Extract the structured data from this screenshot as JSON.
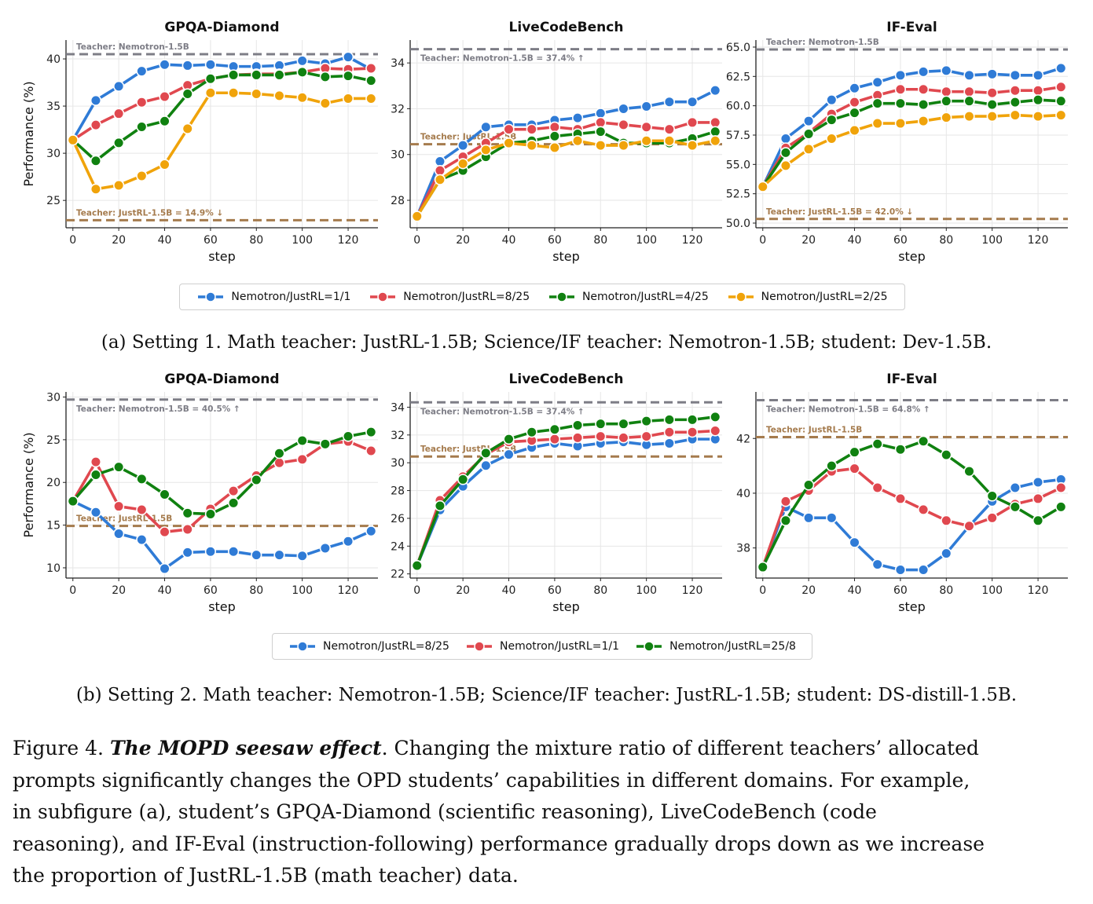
{
  "colors": {
    "blue": "#2f7bd6",
    "red": "#e0484f",
    "green": "#108110",
    "orange": "#f0a30a",
    "teacher_nemotron": "#7d7d86",
    "teacher_justrl": "#a57b4d"
  },
  "row_a": {
    "legend": [
      "Nemotron/JustRL=1/1",
      "Nemotron/JustRL=8/25",
      "Nemotron/JustRL=4/25",
      "Nemotron/JustRL=2/25"
    ],
    "subcaption": "(a) Setting 1. Math teacher: JustRL-1.5B; Science/IF teacher: Nemotron-1.5B; student: Dev-1.5B."
  },
  "row_b": {
    "legend": [
      "Nemotron/JustRL=8/25",
      "Nemotron/JustRL=1/1",
      "Nemotron/JustRL=25/8"
    ],
    "subcaption": "(b) Setting 2. Math teacher: Nemotron-1.5B; Science/IF teacher: JustRL-1.5B; student: DS-distill-1.5B."
  },
  "caption": {
    "lead": "Figure 4. ",
    "emph": "The MOPD seesaw effect",
    "lines": [
      ". Changing the mixture ratio of different teachers’ allocated",
      "prompts significantly changes the OPD students’ capabilities in different domains. For example,",
      "in subfigure (a), student’s GPQA-Diamond (scientific reasoning), LiveCodeBench (code",
      "reasoning), and IF-Eval (instruction-following) performance gradually drops down as we increase",
      "the proportion of JustRL-1.5B (math teacher) data."
    ]
  },
  "chart_data": [
    {
      "type": "line",
      "title": "GPQA-Diamond",
      "xlabel": "step",
      "ylabel": "Performance (%)",
      "xlim": [
        -3,
        133
      ],
      "ylim": [
        22.1,
        42.0
      ],
      "yticks": [
        25,
        30,
        35,
        40
      ],
      "xticks": [
        0,
        20,
        40,
        60,
        80,
        100,
        120
      ],
      "ytick_decimals": 0,
      "grid": true,
      "x": [
        0,
        10,
        20,
        30,
        40,
        50,
        60,
        70,
        80,
        90,
        100,
        110,
        120,
        130
      ],
      "series": [
        {
          "name": "Nemotron/JustRL=1/1",
          "color": "blue",
          "values": [
            31.4,
            35.6,
            37.1,
            38.7,
            39.4,
            39.3,
            39.4,
            39.2,
            39.2,
            39.3,
            39.8,
            39.5,
            40.2,
            38.9
          ]
        },
        {
          "name": "Nemotron/JustRL=8/25",
          "color": "red",
          "values": [
            31.4,
            33.0,
            34.2,
            35.4,
            36.0,
            37.2,
            37.9,
            38.3,
            38.4,
            38.4,
            38.6,
            39.0,
            38.9,
            39.0
          ]
        },
        {
          "name": "Nemotron/JustRL=4/25",
          "color": "green",
          "values": [
            31.4,
            29.2,
            31.1,
            32.8,
            33.4,
            36.3,
            37.9,
            38.3,
            38.3,
            38.3,
            38.6,
            38.1,
            38.2,
            37.7
          ]
        },
        {
          "name": "Nemotron/JustRL=2/25",
          "color": "orange",
          "values": [
            31.4,
            26.2,
            26.6,
            27.6,
            28.8,
            32.6,
            36.4,
            36.4,
            36.3,
            36.1,
            35.9,
            35.3,
            35.8,
            35.8
          ]
        }
      ],
      "reference_lines": [
        {
          "value": 40.5,
          "color": "teacher_nemotron",
          "label": "Teacher: Nemotron-1.5B",
          "label_pos": "above"
        },
        {
          "value": 22.9,
          "color": "teacher_justrl",
          "label": "Teacher: JustRL-1.5B = 14.9% ↓",
          "label_pos": "above"
        }
      ]
    },
    {
      "type": "line",
      "title": "LiveCodeBench",
      "xlabel": "step",
      "ylabel": "",
      "xlim": [
        -3,
        133
      ],
      "ylim": [
        26.8,
        35.0
      ],
      "yticks": [
        28,
        30,
        32,
        34
      ],
      "xticks": [
        0,
        20,
        40,
        60,
        80,
        100,
        120
      ],
      "ytick_decimals": 0,
      "grid": true,
      "x": [
        0,
        10,
        20,
        30,
        40,
        50,
        60,
        70,
        80,
        90,
        100,
        110,
        120,
        130
      ],
      "series": [
        {
          "name": "Nemotron/JustRL=1/1",
          "color": "blue",
          "values": [
            27.3,
            29.7,
            30.4,
            31.2,
            31.3,
            31.3,
            31.5,
            31.6,
            31.8,
            32.0,
            32.1,
            32.3,
            32.3,
            32.8
          ]
        },
        {
          "name": "Nemotron/JustRL=8/25",
          "color": "red",
          "values": [
            27.3,
            29.3,
            29.9,
            30.5,
            31.1,
            31.1,
            31.2,
            31.1,
            31.4,
            31.3,
            31.2,
            31.1,
            31.4,
            31.4
          ]
        },
        {
          "name": "Nemotron/JustRL=4/25",
          "color": "green",
          "values": [
            27.3,
            28.9,
            29.3,
            29.9,
            30.5,
            30.6,
            30.8,
            30.9,
            31.0,
            30.5,
            30.5,
            30.5,
            30.7,
            31.0
          ]
        },
        {
          "name": "Nemotron/JustRL=2/25",
          "color": "orange",
          "values": [
            27.3,
            28.9,
            29.6,
            30.2,
            30.5,
            30.4,
            30.3,
            30.6,
            30.4,
            30.4,
            30.6,
            30.6,
            30.4,
            30.6
          ]
        }
      ],
      "reference_lines": [
        {
          "value": 34.6,
          "color": "teacher_nemotron",
          "label": "Teacher: Nemotron-1.5B = 37.4% ↑",
          "label_pos": "below"
        },
        {
          "value": 30.45,
          "color": "teacher_justrl",
          "label": "Teacher: JustRL-1.5B",
          "label_pos": "above"
        }
      ]
    },
    {
      "type": "line",
      "title": "IF-Eval",
      "xlabel": "step",
      "ylabel": "",
      "xlim": [
        -3,
        133
      ],
      "ylim": [
        49.6,
        65.6
      ],
      "yticks": [
        50.0,
        52.5,
        55.0,
        57.5,
        60.0,
        62.5,
        65.0
      ],
      "xticks": [
        0,
        20,
        40,
        60,
        80,
        100,
        120
      ],
      "ytick_decimals": 1,
      "grid": true,
      "x": [
        0,
        10,
        20,
        30,
        40,
        50,
        60,
        70,
        80,
        90,
        100,
        110,
        120,
        130
      ],
      "series": [
        {
          "name": "Nemotron/JustRL=1/1",
          "color": "blue",
          "values": [
            53.1,
            57.2,
            58.7,
            60.5,
            61.5,
            62.0,
            62.6,
            62.9,
            63.0,
            62.6,
            62.7,
            62.6,
            62.6,
            63.2
          ]
        },
        {
          "name": "Nemotron/JustRL=8/25",
          "color": "red",
          "values": [
            53.1,
            56.4,
            57.7,
            59.3,
            60.3,
            60.9,
            61.4,
            61.4,
            61.2,
            61.2,
            61.1,
            61.3,
            61.3,
            61.6
          ]
        },
        {
          "name": "Nemotron/JustRL=4/25",
          "color": "green",
          "values": [
            53.1,
            56.0,
            57.6,
            58.8,
            59.4,
            60.2,
            60.2,
            60.1,
            60.4,
            60.4,
            60.1,
            60.3,
            60.5,
            60.4
          ]
        },
        {
          "name": "Nemotron/JustRL=2/25",
          "color": "orange",
          "values": [
            53.1,
            54.9,
            56.3,
            57.2,
            57.9,
            58.5,
            58.5,
            58.7,
            59.0,
            59.1,
            59.1,
            59.2,
            59.1,
            59.2
          ]
        }
      ],
      "reference_lines": [
        {
          "value": 64.8,
          "color": "teacher_nemotron",
          "label": "Teacher: Nemotron-1.5B",
          "label_pos": "above"
        },
        {
          "value": 50.35,
          "color": "teacher_justrl",
          "label": "Teacher: JustRL-1.5B = 42.0% ↓",
          "label_pos": "above"
        }
      ]
    },
    {
      "type": "line",
      "title": "GPQA-Diamond",
      "xlabel": "step",
      "ylabel": "Performance (%)",
      "xlim": [
        -3,
        133
      ],
      "ylim": [
        8.8,
        30.6
      ],
      "yticks": [
        10,
        15,
        20,
        25,
        30
      ],
      "xticks": [
        0,
        20,
        40,
        60,
        80,
        100,
        120
      ],
      "ytick_decimals": 0,
      "grid": true,
      "x": [
        0,
        10,
        20,
        30,
        40,
        50,
        60,
        70,
        80,
        90,
        100,
        110,
        120,
        130
      ],
      "series": [
        {
          "name": "Nemotron/JustRL=8/25",
          "color": "blue",
          "values": [
            17.8,
            16.5,
            14.0,
            13.3,
            9.9,
            11.8,
            11.9,
            11.9,
            11.5,
            11.5,
            11.4,
            12.3,
            13.1,
            14.3
          ]
        },
        {
          "name": "Nemotron/JustRL=1/1",
          "color": "red",
          "values": [
            17.8,
            22.4,
            17.2,
            16.8,
            14.2,
            14.5,
            16.9,
            19.0,
            20.8,
            22.3,
            22.7,
            24.5,
            24.8,
            23.7
          ]
        },
        {
          "name": "Nemotron/JustRL=25/8",
          "color": "green",
          "values": [
            17.8,
            20.9,
            21.8,
            20.4,
            18.6,
            16.4,
            16.3,
            17.6,
            20.3,
            23.4,
            24.9,
            24.5,
            25.4,
            25.9
          ]
        }
      ],
      "reference_lines": [
        {
          "value": 29.7,
          "color": "teacher_nemotron",
          "label": "Teacher: Nemotron-1.5B = 40.5% ↑",
          "label_pos": "below"
        },
        {
          "value": 14.9,
          "color": "teacher_justrl",
          "label": "Teacher: JustRL-1.5B",
          "label_pos": "above"
        }
      ]
    },
    {
      "type": "line",
      "title": "LiveCodeBench",
      "xlabel": "step",
      "ylabel": "",
      "xlim": [
        -3,
        133
      ],
      "ylim": [
        21.7,
        35.1
      ],
      "yticks": [
        22,
        24,
        26,
        28,
        30,
        32,
        34
      ],
      "xticks": [
        0,
        20,
        40,
        60,
        80,
        100,
        120
      ],
      "ytick_decimals": 0,
      "grid": true,
      "x": [
        0,
        10,
        20,
        30,
        40,
        50,
        60,
        70,
        80,
        90,
        100,
        110,
        120,
        130
      ],
      "series": [
        {
          "name": "Nemotron/JustRL=8/25",
          "color": "blue",
          "values": [
            22.6,
            26.6,
            28.3,
            29.8,
            30.6,
            31.1,
            31.4,
            31.2,
            31.4,
            31.5,
            31.3,
            31.4,
            31.7,
            31.7
          ]
        },
        {
          "name": "Nemotron/JustRL=1/1",
          "color": "red",
          "values": [
            22.6,
            27.3,
            29.0,
            30.6,
            31.5,
            31.6,
            31.7,
            31.8,
            31.9,
            31.8,
            31.9,
            32.2,
            32.2,
            32.3
          ]
        },
        {
          "name": "Nemotron/JustRL=25/8",
          "color": "green",
          "values": [
            22.6,
            26.9,
            28.8,
            30.7,
            31.7,
            32.2,
            32.4,
            32.7,
            32.8,
            32.8,
            33.0,
            33.1,
            33.1,
            33.3
          ]
        }
      ],
      "reference_lines": [
        {
          "value": 34.35,
          "color": "teacher_nemotron",
          "label": "Teacher: Nemotron-1.5B = 37.4% ↑",
          "label_pos": "below"
        },
        {
          "value": 30.45,
          "color": "teacher_justrl",
          "label": "Teacher: JustRL-1.5B",
          "label_pos": "above"
        }
      ]
    },
    {
      "type": "line",
      "title": "IF-Eval",
      "xlabel": "step",
      "ylabel": "",
      "xlim": [
        -3,
        133
      ],
      "ylim": [
        36.9,
        43.7
      ],
      "yticks": [
        38,
        40,
        42
      ],
      "xticks": [
        0,
        20,
        40,
        60,
        80,
        100,
        120
      ],
      "ytick_decimals": 0,
      "grid": true,
      "x": [
        0,
        10,
        20,
        30,
        40,
        50,
        60,
        70,
        80,
        90,
        100,
        110,
        120,
        130
      ],
      "series": [
        {
          "name": "Nemotron/JustRL=8/25",
          "color": "blue",
          "values": [
            37.3,
            39.5,
            39.1,
            39.1,
            38.2,
            37.4,
            37.2,
            37.2,
            37.8,
            38.8,
            39.7,
            40.2,
            40.4,
            40.5
          ]
        },
        {
          "name": "Nemotron/JustRL=1/1",
          "color": "red",
          "values": [
            37.3,
            39.7,
            40.1,
            40.8,
            40.9,
            40.2,
            39.8,
            39.4,
            39.0,
            38.8,
            39.1,
            39.6,
            39.8,
            40.2
          ]
        },
        {
          "name": "Nemotron/JustRL=25/8",
          "color": "green",
          "values": [
            37.3,
            39.0,
            40.3,
            41.0,
            41.5,
            41.8,
            41.6,
            41.9,
            41.4,
            40.8,
            39.9,
            39.5,
            39.0,
            39.5
          ]
        }
      ],
      "reference_lines": [
        {
          "value": 43.4,
          "color": "teacher_nemotron",
          "label": "Teacher: Nemotron-1.5B = 64.8% ↑",
          "label_pos": "below"
        },
        {
          "value": 42.05,
          "color": "teacher_justrl",
          "label": "Teacher: JustRL-1.5B",
          "label_pos": "above"
        }
      ]
    }
  ]
}
